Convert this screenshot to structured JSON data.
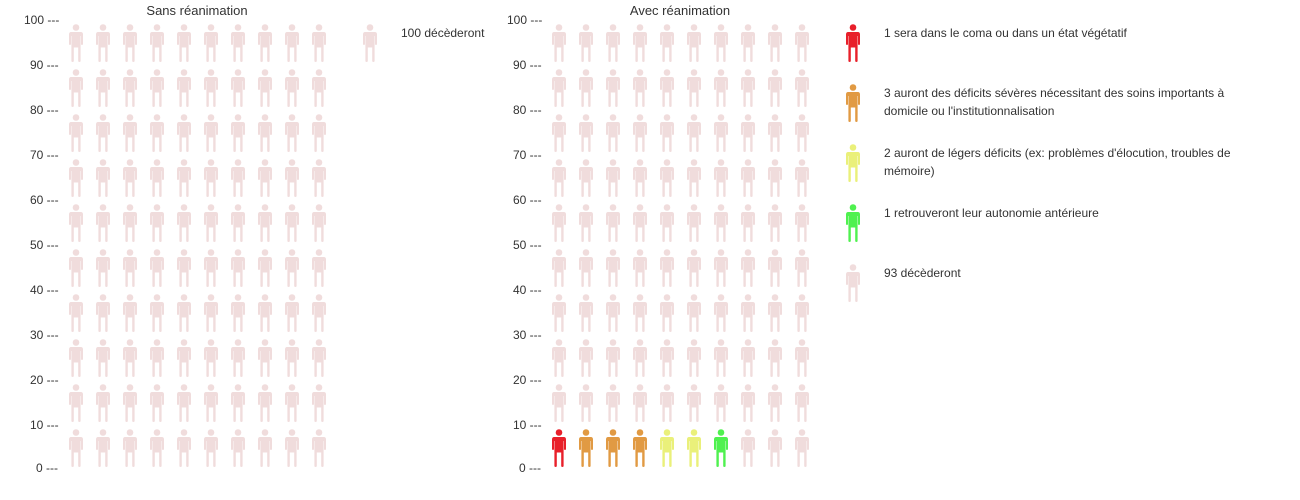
{
  "colors": {
    "deceased": "#f0dcdc",
    "coma": "#e8202a",
    "severe": "#e19a43",
    "mild": "#eaf07a",
    "autonomy": "#4ff14f"
  },
  "icon": "person-icon",
  "chart_data": [
    {
      "type": "pictogram",
      "title": "Sans réanimation",
      "y_ticks": [
        "100 ---",
        "90 ---",
        "80 ---",
        "70 ---",
        "60 ---",
        "50 ---",
        "40 ---",
        "30 ---",
        "20 ---",
        "10 ---",
        "0 ---"
      ],
      "grid": {
        "columns": 10,
        "rows": 10
      },
      "ylim": [
        0,
        100
      ],
      "categories": [
        {
          "key": "deceased",
          "count": 100,
          "label": "100 décèderont"
        }
      ]
    },
    {
      "type": "pictogram",
      "title": "Avec réanimation",
      "y_ticks": [
        "100 ---",
        "90 ---",
        "80 ---",
        "70 ---",
        "60 ---",
        "50 ---",
        "40 ---",
        "30 ---",
        "20 ---",
        "10 ---",
        "0 ---"
      ],
      "grid": {
        "columns": 10,
        "rows": 10
      },
      "ylim": [
        0,
        100
      ],
      "categories": [
        {
          "key": "coma",
          "count": 1,
          "label": "1 sera dans le coma ou dans un état végétatif"
        },
        {
          "key": "severe",
          "count": 3,
          "label": "3 auront des déficits sévères nécessitant des soins importants à domicile ou l'institutionnalisation"
        },
        {
          "key": "mild",
          "count": 2,
          "label": "2 auront de légers déficits (ex: problèmes d'élocution, troubles de mémoire)"
        },
        {
          "key": "autonomy",
          "count": 1,
          "label": "1 retrouveront leur autonomie antérieure"
        },
        {
          "key": "deceased",
          "count": 93,
          "label": "93 décèderont"
        }
      ]
    }
  ]
}
